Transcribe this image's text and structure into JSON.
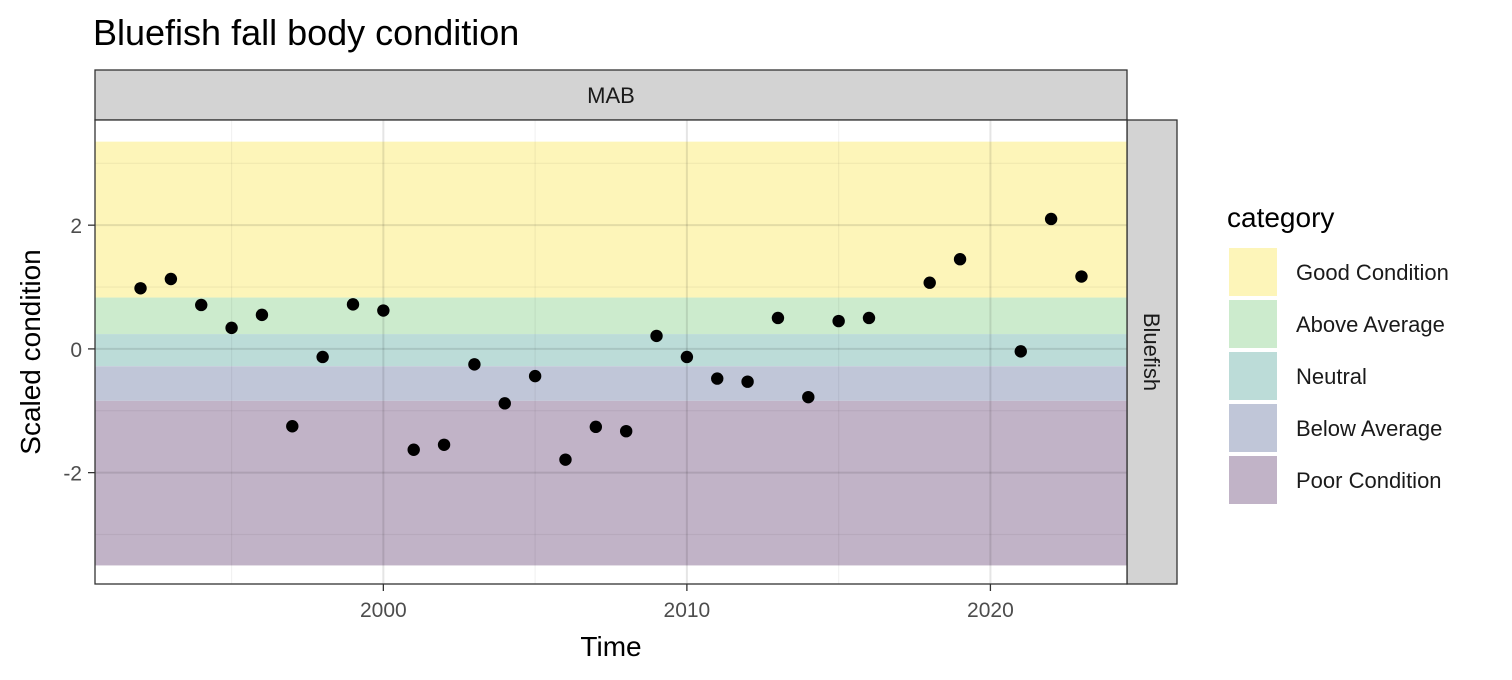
{
  "chart_data": {
    "type": "scatter",
    "title": "Bluefish fall body condition",
    "xlabel": "Time",
    "ylabel": "Scaled condition",
    "facet_top": "MAB",
    "facet_right": "Bluefish",
    "xlim": [
      1990.5,
      2024.5
    ],
    "ylim": [
      -3.8,
      3.7
    ],
    "x_ticks": [
      2000,
      2010,
      2020
    ],
    "y_ticks": [
      -2,
      0,
      2
    ],
    "grid": true,
    "legend": {
      "title": "category",
      "placement": "right",
      "entries": [
        {
          "label": "Good Condition",
          "color": "#fdf5b9"
        },
        {
          "label": "Above Average",
          "color": "#ccebcd"
        },
        {
          "label": "Neutral",
          "color": "#bcdcd8"
        },
        {
          "label": "Below Average",
          "color": "#c0c6d8"
        },
        {
          "label": "Poor Condition",
          "color": "#c1b3c7"
        }
      ]
    },
    "bands": [
      {
        "category": "Good Condition",
        "ymin": 0.83,
        "ymax": 3.35,
        "color": "#fdf5b9"
      },
      {
        "category": "Above Average",
        "ymin": 0.24,
        "ymax": 0.83,
        "color": "#ccebcd"
      },
      {
        "category": "Neutral",
        "ymin": -0.28,
        "ymax": 0.24,
        "color": "#bcdcd8"
      },
      {
        "category": "Below Average",
        "ymin": -0.84,
        "ymax": -0.28,
        "color": "#c0c6d8"
      },
      {
        "category": "Poor Condition",
        "ymin": -3.5,
        "ymax": -0.84,
        "color": "#c1b3c7"
      }
    ],
    "points": [
      {
        "x": 1992,
        "y": 0.98
      },
      {
        "x": 1993,
        "y": 1.13
      },
      {
        "x": 1994,
        "y": 0.71
      },
      {
        "x": 1995,
        "y": 0.34
      },
      {
        "x": 1996,
        "y": 0.55
      },
      {
        "x": 1997,
        "y": -1.25
      },
      {
        "x": 1998,
        "y": -0.13
      },
      {
        "x": 1999,
        "y": 0.72
      },
      {
        "x": 2000,
        "y": 0.62
      },
      {
        "x": 2001,
        "y": -1.63
      },
      {
        "x": 2002,
        "y": -1.55
      },
      {
        "x": 2003,
        "y": -0.25
      },
      {
        "x": 2004,
        "y": -0.88
      },
      {
        "x": 2005,
        "y": -0.44
      },
      {
        "x": 2006,
        "y": -1.79
      },
      {
        "x": 2007,
        "y": -1.26
      },
      {
        "x": 2008,
        "y": -1.33
      },
      {
        "x": 2009,
        "y": 0.21
      },
      {
        "x": 2010,
        "y": -0.13
      },
      {
        "x": 2011,
        "y": -0.48
      },
      {
        "x": 2012,
        "y": -0.53
      },
      {
        "x": 2013,
        "y": 0.5
      },
      {
        "x": 2014,
        "y": -0.78
      },
      {
        "x": 2015,
        "y": 0.45
      },
      {
        "x": 2016,
        "y": 0.5
      },
      {
        "x": 2018,
        "y": 1.07
      },
      {
        "x": 2019,
        "y": 1.45
      },
      {
        "x": 2021,
        "y": -0.04
      },
      {
        "x": 2022,
        "y": 2.1
      },
      {
        "x": 2023,
        "y": 1.17
      }
    ],
    "point_color": "#000000"
  }
}
